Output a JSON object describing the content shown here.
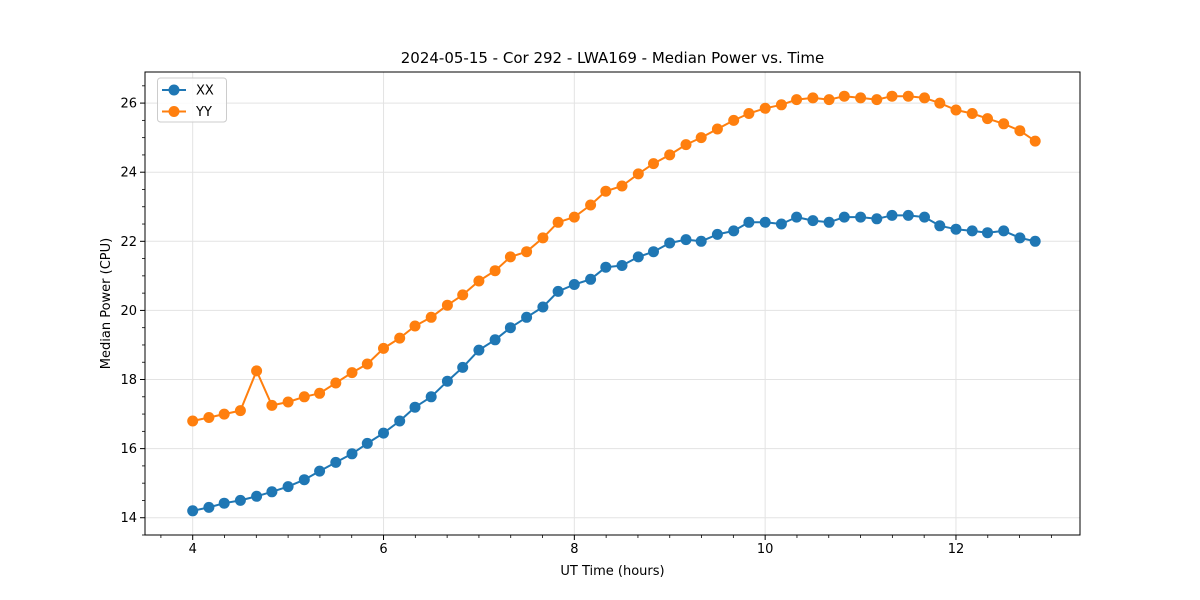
{
  "chart_data": {
    "type": "line",
    "title": "2024-05-15 - Cor 292 - LWA169 - Median Power vs. Time",
    "xlabel": "UT Time (hours)",
    "ylabel": "Median Power (CPU)",
    "xlim": [
      3.5,
      13.3
    ],
    "ylim": [
      13.5,
      26.9
    ],
    "xticks": [
      4,
      6,
      8,
      10,
      12
    ],
    "yticks": [
      14,
      16,
      18,
      20,
      22,
      24,
      26
    ],
    "minor_tick_step_x": 0.3333,
    "minor_tick_step_y": 0.5,
    "grid": "major",
    "grid_color": "#e3e3e3",
    "spine_color": "#000000",
    "legend": {
      "position": "upper-left",
      "entries": [
        "XX",
        "YY"
      ]
    },
    "x": [
      4.0,
      4.17,
      4.33,
      4.5,
      4.67,
      4.83,
      5.0,
      5.17,
      5.33,
      5.5,
      5.67,
      5.83,
      6.0,
      6.17,
      6.33,
      6.5,
      6.67,
      6.83,
      7.0,
      7.17,
      7.33,
      7.5,
      7.67,
      7.83,
      8.0,
      8.17,
      8.33,
      8.5,
      8.67,
      8.83,
      9.0,
      9.17,
      9.33,
      9.5,
      9.67,
      9.83,
      10.0,
      10.17,
      10.33,
      10.5,
      10.67,
      10.83,
      11.0,
      11.17,
      11.33,
      11.5,
      11.67,
      11.83,
      12.0,
      12.17,
      12.33,
      12.5,
      12.67,
      12.83
    ],
    "series": [
      {
        "name": "XX",
        "color": "#1f77b4",
        "marker": "circle",
        "values": [
          14.2,
          14.3,
          14.42,
          14.5,
          14.62,
          14.75,
          14.9,
          15.1,
          15.35,
          15.6,
          15.85,
          16.15,
          16.45,
          16.8,
          17.2,
          17.5,
          17.95,
          18.35,
          18.85,
          19.15,
          19.5,
          19.8,
          20.1,
          20.55,
          20.75,
          20.9,
          21.25,
          21.3,
          21.55,
          21.7,
          21.95,
          22.05,
          22.0,
          22.2,
          22.3,
          22.55,
          22.55,
          22.5,
          22.7,
          22.6,
          22.55,
          22.7,
          22.7,
          22.65,
          22.75,
          22.75,
          22.7,
          22.45,
          22.35,
          22.3,
          22.25,
          22.3,
          22.1,
          22.0
        ]
      },
      {
        "name": "YY",
        "color": "#ff7f0e",
        "marker": "circle",
        "values": [
          16.8,
          16.9,
          17.0,
          17.1,
          18.25,
          17.25,
          17.35,
          17.5,
          17.6,
          17.9,
          18.2,
          18.45,
          18.9,
          19.2,
          19.55,
          19.8,
          20.15,
          20.45,
          20.85,
          21.15,
          21.55,
          21.7,
          22.1,
          22.55,
          22.7,
          23.05,
          23.45,
          23.6,
          23.95,
          24.25,
          24.5,
          24.8,
          25.0,
          25.25,
          25.5,
          25.7,
          25.85,
          25.95,
          26.1,
          26.15,
          26.1,
          26.2,
          26.15,
          26.1,
          26.2,
          26.2,
          26.15,
          26.0,
          25.8,
          25.7,
          25.55,
          25.4,
          25.2,
          24.9
        ]
      }
    ]
  }
}
